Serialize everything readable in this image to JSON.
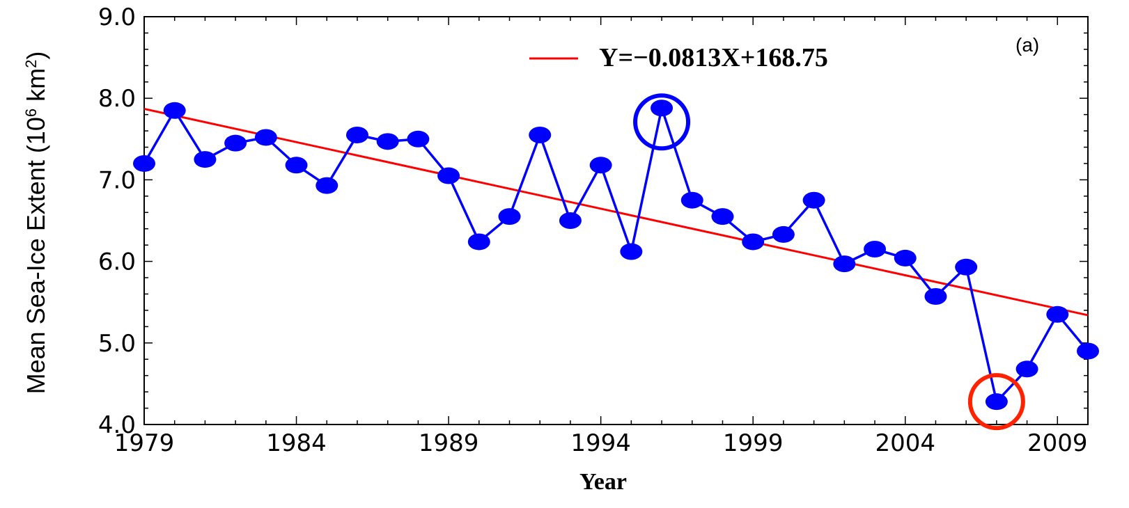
{
  "chart_data": {
    "type": "line",
    "xlabel": "Year",
    "ylabel_main": "Mean Sea-Ice Extent (10",
    "ylabel_sup1": "6",
    "ylabel_mid": " km",
    "ylabel_sup2": "2",
    "ylabel_end": ")",
    "panel_label": "(a)",
    "xlim": [
      1979,
      2010
    ],
    "ylim": [
      4.0,
      9.0
    ],
    "x_ticks": [
      1979,
      1984,
      1989,
      1994,
      1999,
      2004,
      2009
    ],
    "y_ticks": [
      "4.0",
      "5.0",
      "6.0",
      "7.0",
      "8.0",
      "9.0"
    ],
    "grid": false,
    "series": [
      {
        "color": "#0000ff",
        "x": [
          1979,
          1980,
          1981,
          1982,
          1983,
          1984,
          1985,
          1986,
          1987,
          1988,
          1989,
          1990,
          1991,
          1992,
          1993,
          1994,
          1995,
          1996,
          1997,
          1998,
          1999,
          2000,
          2001,
          2002,
          2003,
          2004,
          2005,
          2006,
          2007,
          2008,
          2009,
          2010
        ],
        "y": [
          7.2,
          7.85,
          7.25,
          7.45,
          7.52,
          7.18,
          6.93,
          7.55,
          7.47,
          7.5,
          7.05,
          6.24,
          6.55,
          7.55,
          6.5,
          7.18,
          6.12,
          7.88,
          6.75,
          6.55,
          6.24,
          6.33,
          6.75,
          5.97,
          6.15,
          6.04,
          5.57,
          5.93,
          4.28,
          4.68,
          5.35,
          4.9
        ]
      },
      {
        "name": "Y=−0.0813X+168.75",
        "color": "#ff0000",
        "type": "trend",
        "slope": -0.0813,
        "intercept": 168.75,
        "x": [
          1979,
          2010
        ],
        "y": [
          7.87,
          5.34
        ]
      }
    ],
    "highlights": [
      {
        "x": 1996,
        "y": 7.88,
        "color": "#0000ff"
      },
      {
        "x": 2007,
        "y": 4.28,
        "color": "#ff2200"
      }
    ],
    "legend_position": "top"
  }
}
